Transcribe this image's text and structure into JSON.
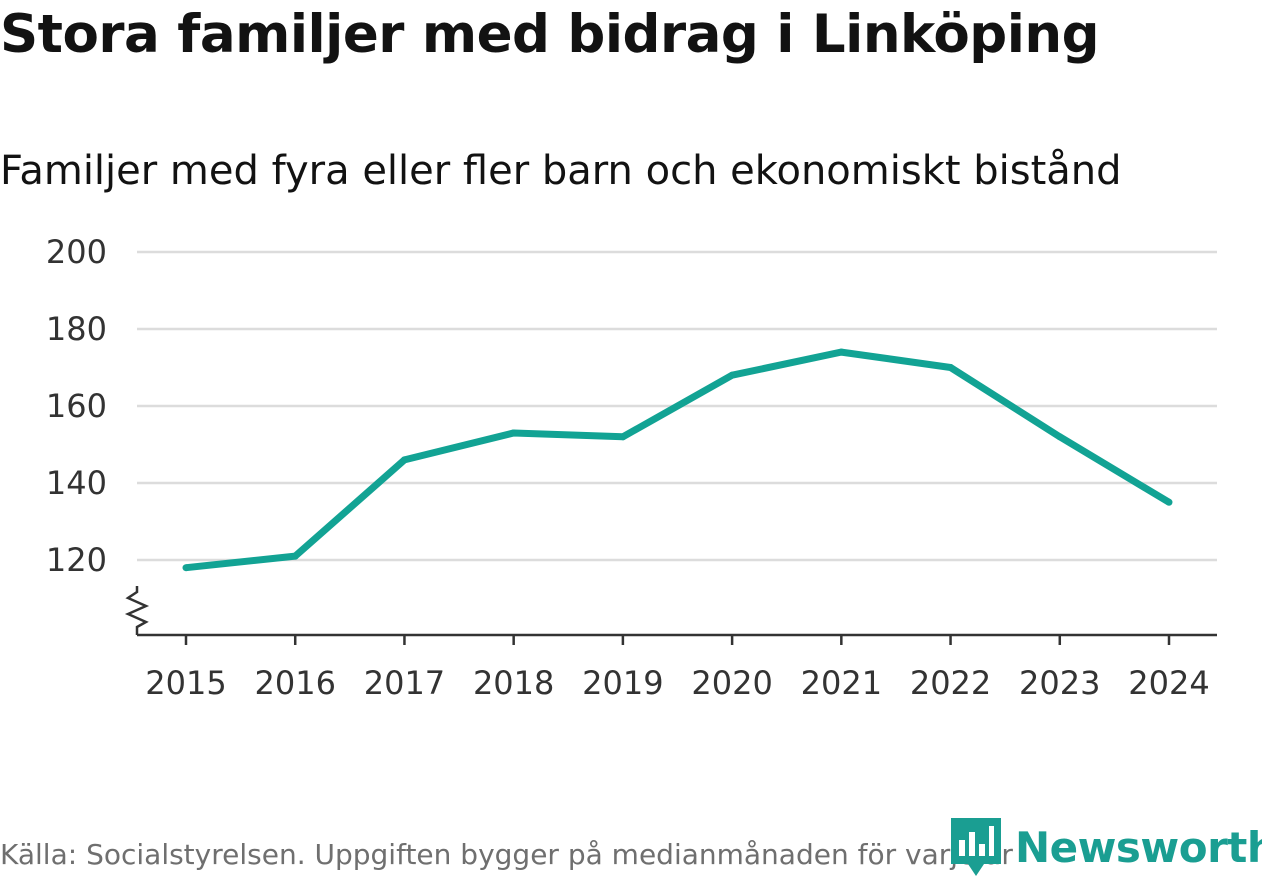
{
  "title": "Stora familjer med bidrag i Linköping",
  "subtitle": "Familjer med fyra eller fler barn och ekonomiskt bistånd",
  "source": "Källa: Socialstyrelsen. Uppgiften bygger på medianmånaden för varje år",
  "brand": {
    "name": "Newsworthy",
    "icon": "newsworthy-logo-icon",
    "color": "#1a9e92"
  },
  "colors": {
    "line": "#12a394",
    "grid": "#dcdcdc",
    "axis": "#333333"
  },
  "chart_data": {
    "type": "line",
    "title": "Stora familjer med bidrag i Linköping",
    "subtitle": "Familjer med fyra eller fler barn och ekonomiskt bistånd",
    "xlabel": "",
    "ylabel": "",
    "categories": [
      "2015",
      "2016",
      "2017",
      "2018",
      "2019",
      "2020",
      "2021",
      "2022",
      "2023",
      "2024"
    ],
    "series": [
      {
        "name": "Familjer med fyra eller fler barn och ekonomiskt bistånd",
        "values": [
          118,
          121,
          146,
          153,
          152,
          168,
          174,
          170,
          152,
          135
        ]
      }
    ],
    "ylim": [
      100,
      200
    ],
    "yticks": [
      120,
      140,
      160,
      180,
      200
    ],
    "axis_break": true,
    "grid": true,
    "legend": "none"
  }
}
